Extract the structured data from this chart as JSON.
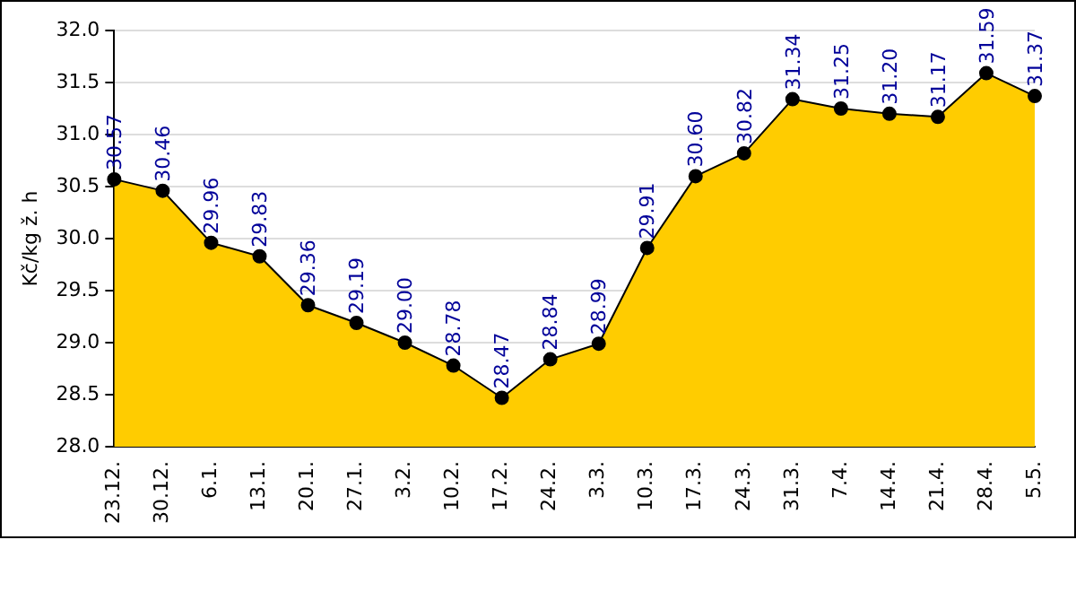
{
  "chart_data": {
    "type": "area",
    "ylabel": "Kč/kg ž. h",
    "categories": [
      "23.12.",
      "30.12.",
      "6.1.",
      "13.1.",
      "20.1.",
      "27.1.",
      "3.2.",
      "10.2.",
      "17.2.",
      "24.2.",
      "3.3.",
      "10.3.",
      "17.3.",
      "24.3.",
      "31.3.",
      "7.4.",
      "14.4.",
      "21.4.",
      "28.4.",
      "5.5."
    ],
    "series": [
      {
        "color": "#ffcc00",
        "values": [
          30.57,
          30.46,
          29.96,
          29.83,
          29.36,
          29.19,
          29.0,
          28.78,
          28.47,
          28.84,
          28.99,
          29.91,
          30.6,
          30.82,
          31.34,
          31.25,
          31.2,
          31.17,
          31.59,
          31.37
        ]
      }
    ],
    "value_labels": [
      "30.57",
      "30.46",
      "29.96",
      "29.83",
      "29.36",
      "29.19",
      "29.00",
      "28.78",
      "28.47",
      "28.84",
      "28.99",
      "29.91",
      "30.60",
      "30.82",
      "31.34",
      "31.25",
      "31.20",
      "31.17",
      "31.59",
      "31.37"
    ],
    "ylim": [
      28,
      32
    ],
    "yticks": [
      {
        "value": 28,
        "label": "28.0"
      },
      {
        "value": 28.5,
        "label": "28.5"
      },
      {
        "value": 29,
        "label": "29.0"
      },
      {
        "value": 29.5,
        "label": "29.5"
      },
      {
        "value": 30,
        "label": "30.0"
      },
      {
        "value": 30.5,
        "label": "30.5"
      },
      {
        "value": 31,
        "label": "31.0"
      },
      {
        "value": 31.5,
        "label": "31.5"
      },
      {
        "value": 32,
        "label": "32.0"
      }
    ],
    "grid": "y",
    "legend": false,
    "marker": "circle",
    "line_style": "solid"
  }
}
